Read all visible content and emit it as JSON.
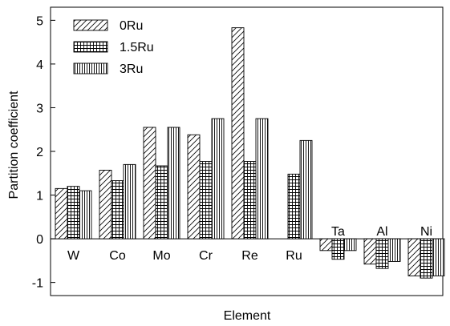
{
  "chart_data": {
    "type": "bar",
    "title": "",
    "xlabel": "Element",
    "ylabel": "Partition coefficient",
    "ylim": [
      -1.3,
      5.3
    ],
    "yticks": [
      -1,
      0,
      1,
      2,
      3,
      4,
      5
    ],
    "grid": false,
    "legend_position": "top-left",
    "categories": [
      "W",
      "Co",
      "Mo",
      "Cr",
      "Re",
      "Ru",
      "Ta",
      "Al",
      "Ni"
    ],
    "series": [
      {
        "name": "0Ru",
        "pattern": "diagonal-hatch",
        "values": [
          1.15,
          1.57,
          2.55,
          2.38,
          4.83,
          null,
          -0.27,
          -0.58,
          -0.85
        ]
      },
      {
        "name": "1.5Ru",
        "pattern": "grid-hatch",
        "values": [
          1.2,
          1.33,
          1.67,
          1.77,
          1.77,
          1.48,
          -0.47,
          -0.68,
          -0.9
        ]
      },
      {
        "name": "3Ru",
        "pattern": "vertical-hatch",
        "values": [
          1.1,
          1.7,
          2.55,
          2.75,
          2.75,
          2.25,
          -0.27,
          -0.52,
          -0.85
        ]
      }
    ],
    "colors": {
      "stroke": "#000000",
      "fill": "#ffffff"
    }
  }
}
